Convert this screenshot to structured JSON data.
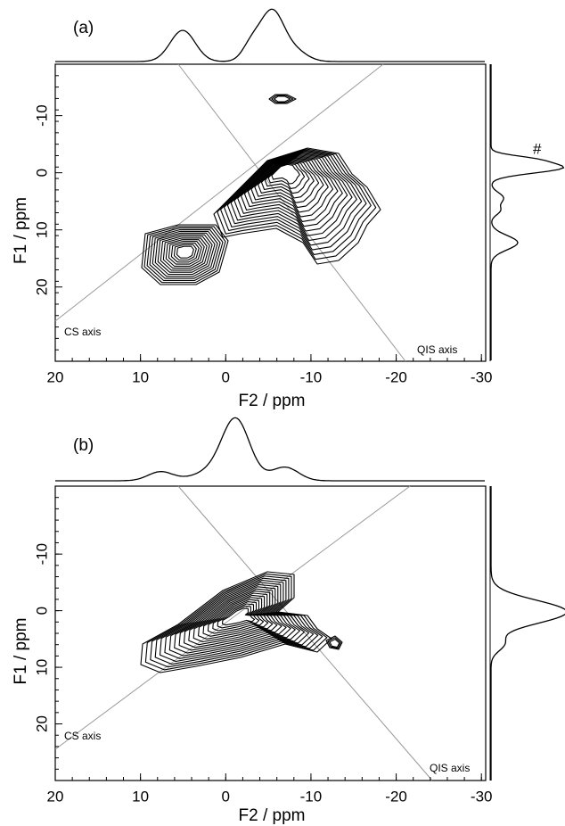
{
  "chart_data": [
    {
      "type": "contour",
      "panel_label": "(a)",
      "x_label": "F2 / ppm",
      "y_label": "F1 / ppm",
      "xlim": [
        20,
        -30.5
      ],
      "xticks": [
        20,
        10,
        0,
        -10,
        -20,
        -30
      ],
      "ylim": [
        -19,
        33
      ],
      "yticks": [
        -10,
        0,
        10,
        20
      ],
      "annotations": [
        "CS axis",
        "QIS axis",
        "#"
      ]
    },
    {
      "type": "contour",
      "panel_label": "(b)",
      "x_label": "F2 / ppm",
      "y_label": "F1 / ppm",
      "xlim": [
        20,
        -30.5
      ],
      "xticks": [
        20,
        10,
        0,
        -10,
        -20,
        -30
      ],
      "ylim": [
        -22,
        30
      ],
      "yticks": [
        -10,
        0,
        10,
        20
      ],
      "annotations": [
        "CS axis",
        "QIS axis"
      ]
    }
  ]
}
